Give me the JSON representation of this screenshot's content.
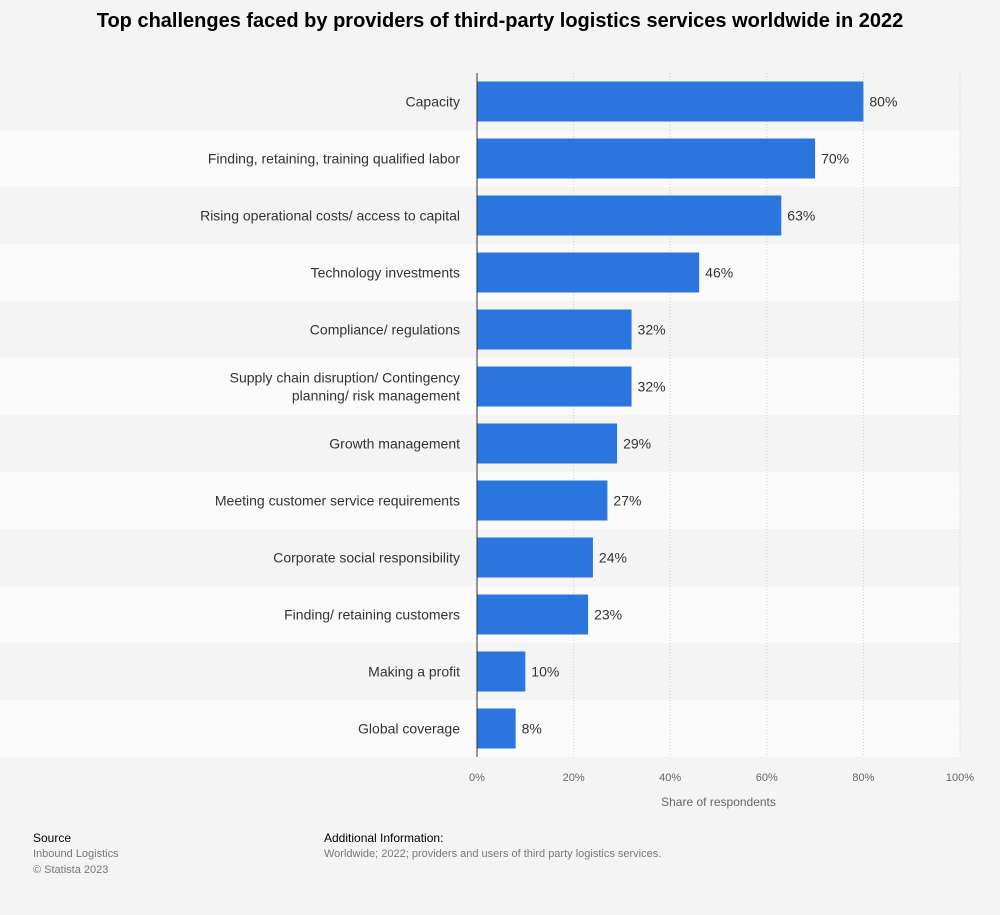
{
  "title": "Top challenges faced by providers of third-party logistics services worldwide in 2022",
  "footer": {
    "source_heading": "Source",
    "source_lines": [
      "Inbound Logistics",
      "© Statista 2023"
    ],
    "info_heading": "Additional Information:",
    "info_text": "Worldwide; 2022; providers and users of third party logistics services."
  },
  "chart_data": {
    "type": "bar",
    "orientation": "horizontal",
    "categories": [
      "Capacity",
      "Finding, retaining, training qualified labor",
      "Rising operational costs/ access to capital",
      "Technology investments",
      "Compliance/ regulations",
      "Supply chain disruption/ Contingency planning/ risk management",
      "Growth management",
      "Meeting customer service requirements",
      "Corporate social responsibility",
      "Finding/ retaining customers",
      "Making a profit",
      "Global coverage"
    ],
    "values": [
      80,
      70,
      63,
      46,
      32,
      32,
      29,
      27,
      24,
      23,
      10,
      8
    ],
    "value_labels": [
      "80%",
      "70%",
      "63%",
      "46%",
      "32%",
      "32%",
      "29%",
      "27%",
      "24%",
      "23%",
      "10%",
      "8%"
    ],
    "xlabel": "Share of respondents",
    "ylabel": "",
    "xlim": [
      0,
      100
    ],
    "xticks": [
      "0%",
      "20%",
      "40%",
      "60%",
      "80%",
      "100%"
    ],
    "bar_color": "#2a75de",
    "grid": true
  }
}
